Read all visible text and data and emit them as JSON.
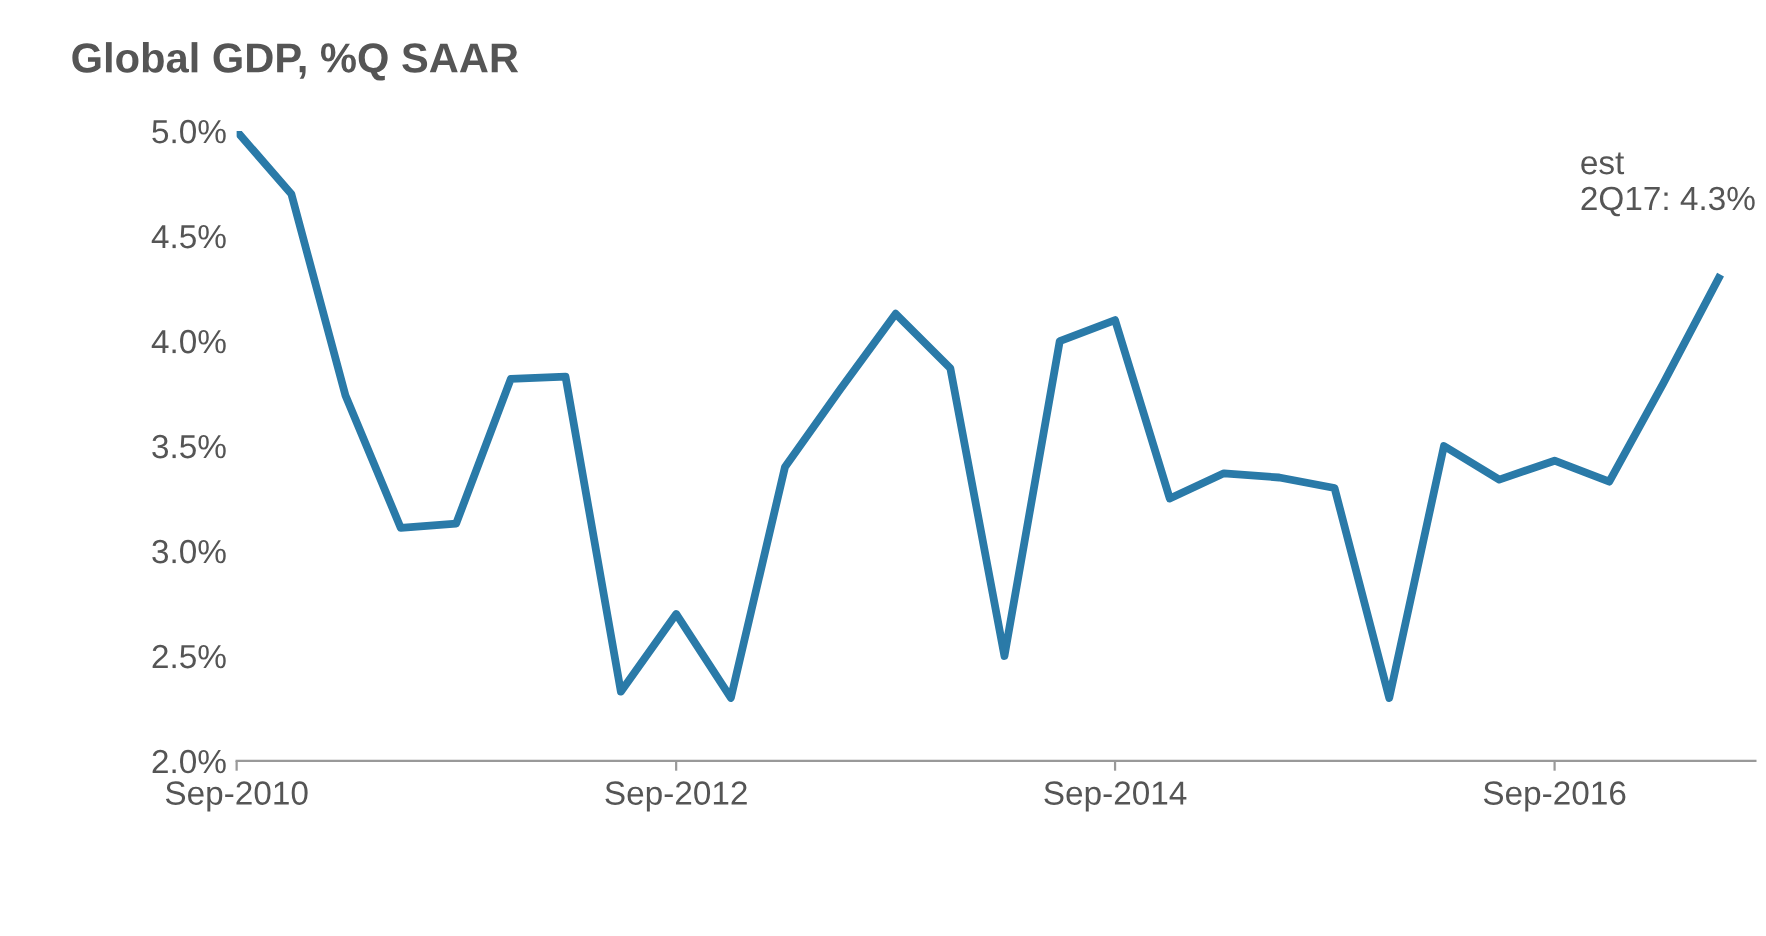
{
  "chart_data": {
    "type": "line",
    "title": "Global GDP, %Q SAAR",
    "x": [
      "2010-09",
      "2010-12",
      "2011-03",
      "2011-06",
      "2011-09",
      "2011-12",
      "2012-03",
      "2012-06",
      "2012-09",
      "2012-12",
      "2013-03",
      "2013-06",
      "2013-09",
      "2013-12",
      "2014-03",
      "2014-06",
      "2014-09",
      "2014-12",
      "2015-03",
      "2015-06",
      "2015-09",
      "2015-12",
      "2016-03",
      "2016-06",
      "2016-09",
      "2016-12",
      "2017-03",
      "2017-06"
    ],
    "series": [
      {
        "color": "#2a7aa8",
        "values": [
          5.0,
          4.7,
          3.74,
          3.11,
          3.13,
          3.82,
          3.83,
          2.33,
          2.7,
          2.3,
          3.4,
          3.77,
          4.13,
          3.87,
          2.5,
          4.0,
          4.1,
          3.25,
          3.37,
          3.35,
          3.3,
          2.3,
          3.5,
          3.34,
          3.43,
          3.33,
          3.8,
          4.3
        ]
      }
    ],
    "xlim": [
      "2010-09",
      "2017-08"
    ],
    "xticks": [
      {
        "value": "2010-09",
        "label": "Sep-2010"
      },
      {
        "value": "2012-09",
        "label": "Sep-2012"
      },
      {
        "value": "2014-09",
        "label": "Sep-2014"
      },
      {
        "value": "2016-09",
        "label": "Sep-2016"
      }
    ],
    "ylim": [
      2.0,
      5.0
    ],
    "yticks": [
      {
        "value": 2.0,
        "label": "2.0%"
      },
      {
        "value": 2.5,
        "label": "2.5%"
      },
      {
        "value": 3.0,
        "label": "3.0%"
      },
      {
        "value": 3.5,
        "label": "3.5%"
      },
      {
        "value": 4.0,
        "label": "4.0%"
      },
      {
        "value": 4.5,
        "label": "4.5%"
      },
      {
        "value": 5.0,
        "label": "5.0%"
      }
    ],
    "grid": false,
    "legend": false,
    "marker": "none",
    "line_style": "solid",
    "annotations": [
      {
        "text": "est\n2Q17: 4.3%",
        "x": "2017-06",
        "y": 4.3
      }
    ]
  }
}
